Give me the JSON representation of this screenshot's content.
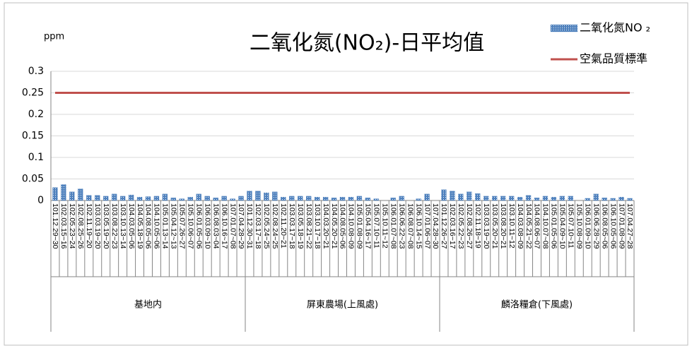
{
  "chart_data": {
    "type": "bar_line",
    "title": "二氧化氮(NO₂)-日平均值",
    "y_label": "ppm",
    "groups": [
      {
        "name": "基地内",
        "categories": [
          "101.12.29~30",
          "102.03.15~16",
          "102.05.23~24",
          "102.08.25~26",
          "102.11.19~20",
          "103.03.19~20",
          "103.05.19~20",
          "103.08.22~23",
          "103.10.13~14",
          "104.03.05~06",
          "104.05.18~19",
          "104.08.05~06",
          "104.10.05~06",
          "105.01.13~14",
          "105.04.12~13",
          "105.07.26~27",
          "105.10.06~07",
          "106.01.05~06",
          "106.03.09~10",
          "106.08.03~04",
          "106.10.16~17",
          "107.01.07~08",
          "107.04.28~29"
        ]
      },
      {
        "name": "屏東農場(上風處)",
        "categories": [
          "101.12.30~31",
          "102.03.17~18",
          "102.05.24~25",
          "102.08.24~25",
          "102.11.20~21",
          "103.03.17~18",
          "103.05.18~19",
          "103.08.21~22",
          "103.10.17~18",
          "104.03.20~21",
          "104.05.20~21",
          "104.08.05~06",
          "104.10.08~09",
          "105.01.08~09",
          "105.04.16~17",
          "105.07.10~11",
          "105.10.11~12",
          "106.01.07~08",
          "106.06.22~23",
          "106.08.07~08",
          "106.10.14~15",
          "107.01.06~07",
          "107.04.28~30"
        ]
      },
      {
        "name": "麟洛糧倉(下風處)",
        "categories": [
          "101.12.26~27",
          "102.03.16~17",
          "102.05.22~23",
          "102.08.26~27",
          "102.11.18~19",
          "103.03.19~20",
          "103.05.20~21",
          "103.08.20~21",
          "103.10.11~12",
          "104.03.08~09",
          "104.05.21~22",
          "104.08.06~07",
          "104.10.07~08",
          "105.01.05~06",
          "105.04.09~10",
          "105.07.10~11",
          "105.10.08~09",
          "106.01.09~10",
          "106.06.28~29",
          "106.08.05~06",
          "106.10.05~06",
          "107.01.08~09",
          "107.04.27~28"
        ]
      }
    ],
    "series": [
      {
        "name": "二氧化氮NO ₂",
        "type": "bar",
        "color": "#4f81bd",
        "values": [
          0.03,
          0.037,
          0.02,
          0.027,
          0.012,
          0.012,
          0.01,
          0.015,
          0.01,
          0.013,
          0.008,
          0.009,
          0.01,
          0.015,
          0.006,
          0.004,
          0.008,
          0.015,
          0.01,
          0.006,
          0.01,
          0.004,
          0.01,
          0.022,
          0.022,
          0.018,
          0.02,
          0.008,
          0.01,
          0.01,
          0.01,
          0.008,
          0.008,
          0.006,
          0.008,
          0.008,
          0.01,
          0.006,
          0.004,
          0,
          0.006,
          0.01,
          0,
          0.004,
          0.015,
          0,
          0.025,
          0.022,
          0.015,
          0.02,
          0.016,
          0.01,
          0.01,
          0.01,
          0.01,
          0.008,
          0.012,
          0.006,
          0.01,
          0.008,
          0.01,
          0.01,
          0,
          0.005,
          0.015,
          0.006,
          0.005,
          0.008,
          0.005
        ]
      },
      {
        "name": "空氣品質標準",
        "type": "line",
        "color": "#c0504d",
        "values": [
          0.25,
          0.25,
          0.25,
          0.25,
          0.25,
          0.25,
          0.25,
          0.25,
          0.25,
          0.25,
          0.25,
          0.25,
          0.25,
          0.25,
          0.25,
          0.25,
          0.25,
          0.25,
          0.25,
          0.25,
          0.25,
          0.25,
          0.25,
          0.25,
          0.25,
          0.25,
          0.25,
          0.25,
          0.25,
          0.25,
          0.25,
          0.25,
          0.25,
          0.25,
          0.25,
          0.25,
          0.25,
          0.25,
          0.25,
          0.25,
          0.25,
          0.25,
          0.25,
          0.25,
          0.25,
          0.25,
          0.25,
          0.25,
          0.25,
          0.25,
          0.25,
          0.25,
          0.25,
          0.25,
          0.25,
          0.25,
          0.25,
          0.25,
          0.25,
          0.25,
          0.25,
          0.25,
          0.25,
          0.25,
          0.25,
          0.25,
          0.25,
          0.25,
          0.25
        ]
      }
    ],
    "ylim": [
      0,
      0.3
    ],
    "yticks": [
      0,
      0.05,
      0.1,
      0.15,
      0.2,
      0.25,
      0.3
    ],
    "grid": true
  }
}
